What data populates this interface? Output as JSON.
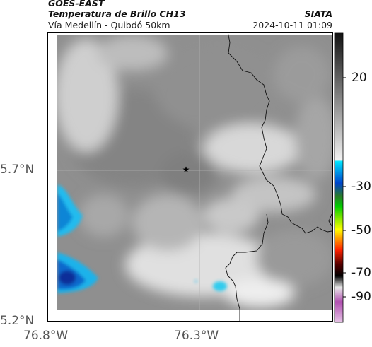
{
  "header": {
    "satellite": "GOES-EAST",
    "product": "Temperatura de Brillo CH13",
    "region": "Vía Medellín - Quibdó 50km",
    "organization": "SIATA",
    "timestamp": "2024-10-11 01:09"
  },
  "map": {
    "lat_ticks": [
      "5.7°N",
      "5.2°N"
    ],
    "lon_ticks": [
      "76.8°W",
      "76.3°W"
    ],
    "gridlines": true,
    "marker": "star-icon"
  },
  "colorbar": {
    "ticks": [
      "20",
      "-30",
      "-50",
      "-70",
      "-90"
    ],
    "colors": {
      "gray_top": "#111111",
      "gray_bottom": "#f2f2f2",
      "cyan": "#00e5ff",
      "blue": "#0044cc",
      "green": "#00cc00",
      "yellow": "#ffff00",
      "red": "#ff2200",
      "black": "#000000",
      "purple": "#b04fb0"
    }
  }
}
